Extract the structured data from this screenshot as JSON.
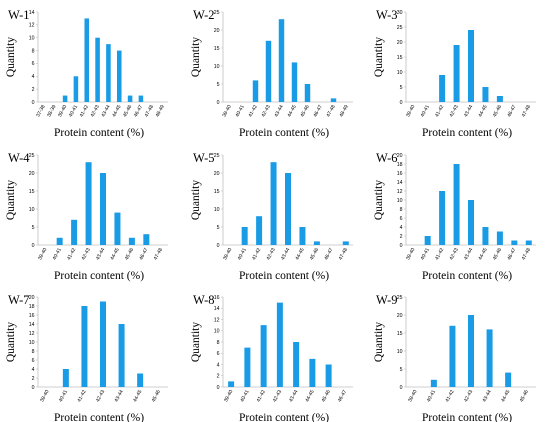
{
  "chart_data": [
    {
      "type": "bar",
      "title": "W-1",
      "xlabel": "Protein content (%)",
      "ylabel": "Quantity",
      "ylim": [
        0,
        14
      ],
      "yticks": [
        0,
        2,
        4,
        6,
        8,
        10,
        12,
        14
      ],
      "bar_color": "#1a9be6",
      "categories": [
        "37-38",
        "38-39",
        "39-40",
        "40-41",
        "41-42",
        "42-43",
        "43-44",
        "44-45",
        "45-46",
        "46-47",
        "47-48",
        "48-49"
      ],
      "values": [
        0,
        0,
        1,
        4,
        13,
        10,
        9,
        8,
        1,
        1,
        0,
        0
      ]
    },
    {
      "type": "bar",
      "title": "W-2",
      "xlabel": "Protein content (%)",
      "ylabel": "Quantity",
      "ylim": [
        0,
        25
      ],
      "yticks": [
        0,
        5,
        10,
        15,
        20,
        25
      ],
      "bar_color": "#1a9be6",
      "categories": [
        "39-40",
        "40-41",
        "41-42",
        "42-43",
        "43-44",
        "44-45",
        "45-46",
        "46-47",
        "47-48",
        "48-49"
      ],
      "values": [
        0,
        0,
        6,
        17,
        23,
        11,
        5,
        0,
        1,
        0
      ]
    },
    {
      "type": "bar",
      "title": "W-3",
      "xlabel": "Protein content (%)",
      "ylabel": "Quantity",
      "ylim": [
        0,
        30
      ],
      "yticks": [
        0,
        5,
        10,
        15,
        20,
        25,
        30
      ],
      "bar_color": "#1a9be6",
      "categories": [
        "39-40",
        "40-41",
        "41-42",
        "42-43",
        "43-44",
        "44-45",
        "45-46",
        "46-47",
        "47-48"
      ],
      "values": [
        0,
        0,
        9,
        19,
        24,
        5,
        2,
        0,
        0
      ]
    },
    {
      "type": "bar",
      "title": "W-4",
      "xlabel": "Protein content (%)",
      "ylabel": "Quantity",
      "ylim": [
        0,
        25
      ],
      "yticks": [
        0,
        5,
        10,
        15,
        20,
        25
      ],
      "bar_color": "#1a9be6",
      "categories": [
        "39-40",
        "40-41",
        "41-42",
        "42-43",
        "43-44",
        "44-45",
        "45-46",
        "46-47",
        "47-48"
      ],
      "values": [
        0,
        2,
        7,
        23,
        20,
        9,
        2,
        3,
        0
      ]
    },
    {
      "type": "bar",
      "title": "W-5",
      "xlabel": "Protein content (%)",
      "ylabel": "Quantity",
      "ylim": [
        0,
        25
      ],
      "yticks": [
        0,
        5,
        10,
        15,
        20,
        25
      ],
      "bar_color": "#1a9be6",
      "categories": [
        "39-40",
        "40-41",
        "41-42",
        "42-43",
        "43-44",
        "44-45",
        "45-46",
        "46-47",
        "47-48"
      ],
      "values": [
        0,
        5,
        8,
        23,
        20,
        5,
        1,
        0,
        1
      ]
    },
    {
      "type": "bar",
      "title": "W-6",
      "xlabel": "Protein content (%)",
      "ylabel": "Quantity",
      "ylim": [
        0,
        20
      ],
      "yticks": [
        0,
        2,
        4,
        6,
        8,
        10,
        12,
        14,
        16,
        18,
        20
      ],
      "bar_color": "#1a9be6",
      "categories": [
        "39-40",
        "40-41",
        "41-42",
        "42-43",
        "43-44",
        "44-45",
        "45-46",
        "46-47",
        "47-48"
      ],
      "values": [
        0,
        2,
        12,
        18,
        10,
        4,
        3,
        1,
        1
      ]
    },
    {
      "type": "bar",
      "title": "W-7",
      "xlabel": "Protein content (%)",
      "ylabel": "Quantity",
      "ylim": [
        0,
        20
      ],
      "yticks": [
        0,
        2,
        4,
        6,
        8,
        10,
        12,
        14,
        16,
        18,
        20
      ],
      "bar_color": "#1a9be6",
      "categories": [
        "39-40",
        "40-41",
        "41-42",
        "42-43",
        "43-44",
        "44-45",
        "45-46"
      ],
      "values": [
        0,
        4,
        18,
        19,
        14,
        3,
        0
      ]
    },
    {
      "type": "bar",
      "title": "W-8",
      "xlabel": "Protein content (%)",
      "ylabel": "Quantity",
      "ylim": [
        0,
        16
      ],
      "yticks": [
        0,
        2,
        4,
        6,
        8,
        10,
        12,
        14,
        16
      ],
      "bar_color": "#1a9be6",
      "categories": [
        "39-40",
        "40-41",
        "41-42",
        "42-43",
        "43-44",
        "44-45",
        "45-46",
        "46-47"
      ],
      "values": [
        1,
        7,
        11,
        15,
        8,
        5,
        4,
        0
      ]
    },
    {
      "type": "bar",
      "title": "W-9",
      "xlabel": "Protein content (%)",
      "ylabel": "Quantity",
      "ylim": [
        0,
        25
      ],
      "yticks": [
        0,
        5,
        10,
        15,
        20,
        25
      ],
      "bar_color": "#1a9be6",
      "categories": [
        "39-40",
        "40-41",
        "41-42",
        "42-43",
        "43-44",
        "44-45",
        "45-46"
      ],
      "values": [
        0,
        2,
        17,
        20,
        16,
        4,
        0
      ]
    }
  ]
}
